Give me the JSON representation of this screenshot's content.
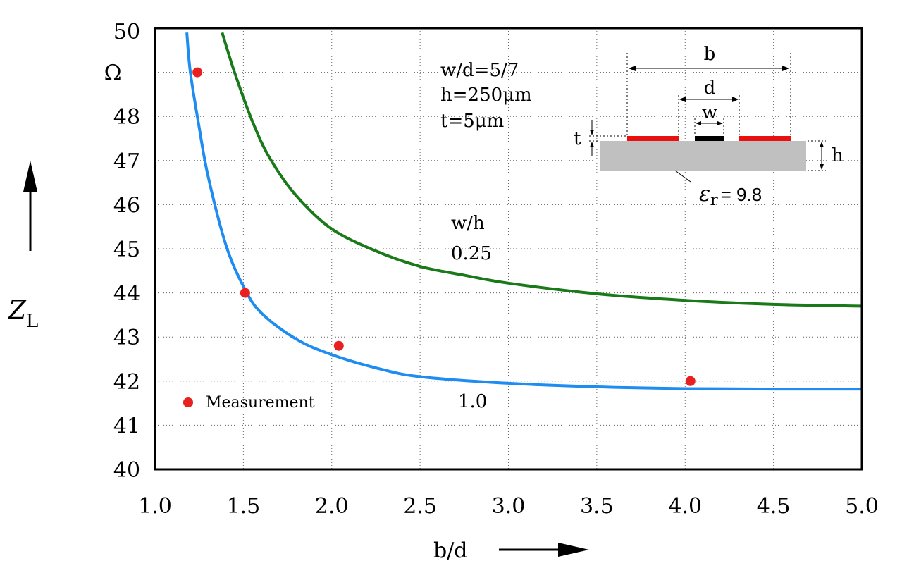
{
  "chart_data": {
    "type": "line",
    "xlabel": "b/d",
    "ylabel_symbol": "Z",
    "ylabel_subscript": "L",
    "y_unit": "Ω",
    "xlim": [
      1.0,
      5.0
    ],
    "ylim": [
      40,
      50
    ],
    "grid": true,
    "x_ticks": [
      "1.0",
      "1.5",
      "2.0",
      "2.5",
      "3.0",
      "3.5",
      "4.0",
      "4.5",
      "5.0"
    ],
    "y_ticks": [
      "40",
      "41",
      "42",
      "43",
      "44",
      "45",
      "46",
      "47",
      "48"
    ],
    "y_top_label": "50",
    "series": [
      {
        "name": "0.25",
        "color": "#1a7a1a",
        "x": [
          1.38,
          1.45,
          1.55,
          1.65,
          1.8,
          2.0,
          2.25,
          2.5,
          2.75,
          3.0,
          3.5,
          4.0,
          4.5,
          5.0
        ],
        "y": [
          49.9,
          49.0,
          47.9,
          47.05,
          46.2,
          45.45,
          44.95,
          44.6,
          44.4,
          44.22,
          43.98,
          43.83,
          43.74,
          43.7
        ]
      },
      {
        "name": "1.0",
        "color": "#1e8cf0",
        "x": [
          1.18,
          1.2,
          1.25,
          1.3,
          1.4,
          1.5,
          1.6,
          1.8,
          2.0,
          2.25,
          2.5,
          3.0,
          3.5,
          4.0,
          4.5,
          5.0
        ],
        "y": [
          49.9,
          49.0,
          47.75,
          46.65,
          45.1,
          44.15,
          43.55,
          42.95,
          42.6,
          42.3,
          42.1,
          41.95,
          41.87,
          41.83,
          41.82,
          41.82
        ]
      }
    ],
    "measurements": {
      "label": "Measurement",
      "color": "#e82020",
      "points": [
        [
          1.24,
          49.0
        ],
        [
          1.51,
          44.0
        ],
        [
          2.04,
          42.8
        ],
        [
          4.03,
          42.0
        ]
      ]
    },
    "series_header": "w/h",
    "params": [
      "w/d=5/7",
      "h=250μm",
      "t=5μm"
    ],
    "inset": {
      "labels": {
        "b": "b",
        "d": "d",
        "w": "w",
        "t": "t",
        "h": "h"
      },
      "epsilon_symbol": "ε",
      "epsilon_subscript": "r",
      "epsilon_value": "= 9.8",
      "substrate_color": "#c0c0c0",
      "ground_color": "#e81010",
      "strip_color": "#000000"
    }
  }
}
